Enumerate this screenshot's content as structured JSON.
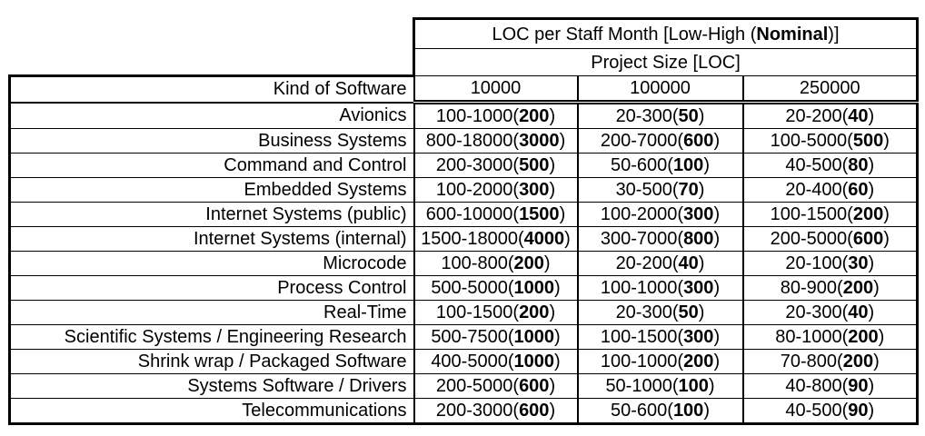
{
  "page": {
    "background_color": "#ffffff",
    "text_color": "#000000"
  },
  "table": {
    "title": {
      "prefix": "LOC per Staff Month [Low-High (",
      "bold": "Nominal",
      "suffix": ")]"
    },
    "subtitle": "Project Size [LOC]",
    "kind_header": "Kind of Software",
    "size_headers": [
      "10000",
      "100000",
      "250000"
    ],
    "rows": [
      {
        "label": "Avionics",
        "cells": [
          {
            "range": "100-1000",
            "nominal": "200"
          },
          {
            "range": "20-300",
            "nominal": "50"
          },
          {
            "range": "20-200",
            "nominal": "40"
          }
        ]
      },
      {
        "label": "Business Systems",
        "cells": [
          {
            "range": "800-18000",
            "nominal": "3000"
          },
          {
            "range": "200-7000",
            "nominal": "600"
          },
          {
            "range": "100-5000",
            "nominal": "500"
          }
        ]
      },
      {
        "label": "Command and Control",
        "cells": [
          {
            "range": "200-3000",
            "nominal": "500"
          },
          {
            "range": "50-600",
            "nominal": "100"
          },
          {
            "range": "40-500",
            "nominal": "80"
          }
        ]
      },
      {
        "label": "Embedded Systems",
        "cells": [
          {
            "range": "100-2000",
            "nominal": "300"
          },
          {
            "range": "30-500",
            "nominal": "70"
          },
          {
            "range": "20-400",
            "nominal": "60"
          }
        ]
      },
      {
        "label": "Internet Systems (public)",
        "cells": [
          {
            "range": "600-10000",
            "nominal": "1500"
          },
          {
            "range": "100-2000",
            "nominal": "300"
          },
          {
            "range": "100-1500",
            "nominal": "200"
          }
        ]
      },
      {
        "label": "Internet Systems (internal)",
        "cells": [
          {
            "range": "1500-18000",
            "nominal": "4000"
          },
          {
            "range": "300-7000",
            "nominal": "800"
          },
          {
            "range": "200-5000",
            "nominal": "600"
          }
        ]
      },
      {
        "label": "Microcode",
        "cells": [
          {
            "range": "100-800",
            "nominal": "200"
          },
          {
            "range": "20-200",
            "nominal": "40"
          },
          {
            "range": "20-100",
            "nominal": "30"
          }
        ]
      },
      {
        "label": "Process Control",
        "cells": [
          {
            "range": "500-5000",
            "nominal": "1000"
          },
          {
            "range": "100-1000",
            "nominal": "300"
          },
          {
            "range": "80-900",
            "nominal": "200"
          }
        ]
      },
      {
        "label": "Real-Time",
        "cells": [
          {
            "range": "100-1500",
            "nominal": "200"
          },
          {
            "range": "20-300",
            "nominal": "50"
          },
          {
            "range": "20-300",
            "nominal": "40"
          }
        ]
      },
      {
        "label": "Scientific Systems / Engineering Research",
        "cells": [
          {
            "range": "500-7500",
            "nominal": "1000"
          },
          {
            "range": "100-1500",
            "nominal": "300"
          },
          {
            "range": "80-1000",
            "nominal": "200"
          }
        ]
      },
      {
        "label": "Shrink wrap / Packaged Software",
        "cells": [
          {
            "range": "400-5000",
            "nominal": "1000"
          },
          {
            "range": "100-1000",
            "nominal": "200"
          },
          {
            "range": "70-800",
            "nominal": "200"
          }
        ]
      },
      {
        "label": "Systems Software / Drivers",
        "cells": [
          {
            "range": "200-5000",
            "nominal": "600"
          },
          {
            "range": "50-1000",
            "nominal": "100"
          },
          {
            "range": "40-800",
            "nominal": "90"
          }
        ]
      },
      {
        "label": "Telecommunications",
        "cells": [
          {
            "range": "200-3000",
            "nominal": "600"
          },
          {
            "range": "50-600",
            "nominal": "100"
          },
          {
            "range": "40-500",
            "nominal": "90"
          }
        ]
      }
    ]
  }
}
